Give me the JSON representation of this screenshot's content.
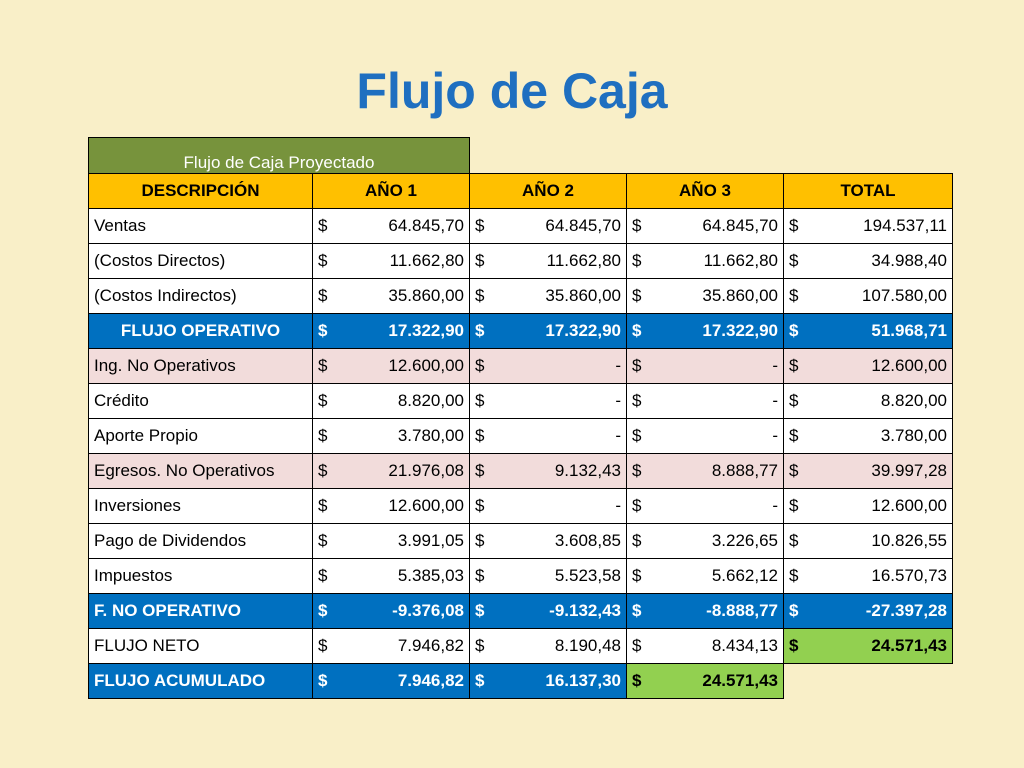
{
  "title": "Flujo de Caja",
  "table": {
    "caption": "Flujo de Caja Proyectado",
    "headers": [
      "DESCRIPCIÓN",
      "AÑO 1",
      "AÑO 2",
      "AÑO 3",
      "TOTAL"
    ],
    "rows": [
      {
        "label": "Ventas",
        "style": "white",
        "cells": [
          [
            "$",
            "64.845,70"
          ],
          [
            "$",
            "64.845,70"
          ],
          [
            "$",
            "64.845,70"
          ],
          [
            "$",
            "194.537,11"
          ]
        ]
      },
      {
        "label": "(Costos Directos)",
        "style": "white",
        "cells": [
          [
            "$",
            "11.662,80"
          ],
          [
            "$",
            "11.662,80"
          ],
          [
            "$",
            "11.662,80"
          ],
          [
            "$",
            "34.988,40"
          ]
        ]
      },
      {
        "label": "(Costos Indirectos)",
        "style": "white",
        "cells": [
          [
            "$",
            "35.860,00"
          ],
          [
            "$",
            "35.860,00"
          ],
          [
            "$",
            "35.860,00"
          ],
          [
            "$",
            "107.580,00"
          ]
        ]
      },
      {
        "label": "FLUJO OPERATIVO",
        "style": "blue",
        "cells": [
          [
            "$",
            "17.322,90"
          ],
          [
            "$",
            "17.322,90"
          ],
          [
            "$",
            "17.322,90"
          ],
          [
            "$",
            "51.968,71"
          ]
        ]
      },
      {
        "label": "Ing. No Operativos",
        "style": "pink",
        "cells": [
          [
            "$",
            "12.600,00"
          ],
          [
            "$",
            "-"
          ],
          [
            "$",
            "-"
          ],
          [
            "$",
            "12.600,00"
          ]
        ]
      },
      {
        "label": "Crédito",
        "style": "white",
        "cells": [
          [
            "$",
            "8.820,00"
          ],
          [
            "$",
            "-"
          ],
          [
            "$",
            "-"
          ],
          [
            "$",
            "8.820,00"
          ]
        ]
      },
      {
        "label": "Aporte Propio",
        "style": "white",
        "cells": [
          [
            "$",
            "3.780,00"
          ],
          [
            "$",
            "-"
          ],
          [
            "$",
            "-"
          ],
          [
            "$",
            "3.780,00"
          ]
        ]
      },
      {
        "label": "Egresos. No Operativos",
        "style": "pink",
        "cells": [
          [
            "$",
            "21.976,08"
          ],
          [
            "$",
            "9.132,43"
          ],
          [
            "$",
            "8.888,77"
          ],
          [
            "$",
            "39.997,28"
          ]
        ]
      },
      {
        "label": "Inversiones",
        "style": "white",
        "cells": [
          [
            "$",
            "12.600,00"
          ],
          [
            "$",
            "-"
          ],
          [
            "$",
            "-"
          ],
          [
            "$",
            "12.600,00"
          ]
        ]
      },
      {
        "label": "Pago de Dividendos",
        "style": "white",
        "cells": [
          [
            "$",
            "3.991,05"
          ],
          [
            "$",
            "3.608,85"
          ],
          [
            "$",
            "3.226,65"
          ],
          [
            "$",
            "10.826,55"
          ]
        ]
      },
      {
        "label": "Impuestos",
        "style": "white",
        "cells": [
          [
            "$",
            "5.385,03"
          ],
          [
            "$",
            "5.523,58"
          ],
          [
            "$",
            "5.662,12"
          ],
          [
            "$",
            "16.570,73"
          ]
        ]
      },
      {
        "label": "F. NO OPERATIVO",
        "style": "blue left",
        "cells": [
          [
            "$",
            "-9.376,08"
          ],
          [
            "$",
            "-9.132,43"
          ],
          [
            "$",
            "-8.888,77"
          ],
          [
            "$",
            "-27.397,28"
          ]
        ]
      },
      {
        "label": "FLUJO NETO",
        "style": "white",
        "cells": [
          [
            "$",
            "7.946,82"
          ],
          [
            "$",
            "8.190,48"
          ],
          [
            "$",
            "8.434,13"
          ],
          [
            "$",
            "24.571,43"
          ]
        ],
        "highlight": [
          3
        ]
      },
      {
        "label": "FLUJO ACUMULADO",
        "style": "blue left",
        "cells": [
          [
            "$",
            "7.946,82"
          ],
          [
            "$",
            "16.137,30"
          ],
          [
            "$",
            "24.571,43"
          ]
        ],
        "highlight": [
          2
        ]
      }
    ]
  },
  "colors": {
    "background": "#f9efc8",
    "title": "#1f6fc0",
    "caption_bg": "#77933c",
    "header_bg": "#ffc000",
    "blue_row": "#0070c0",
    "pink_row": "#f2dcdb",
    "highlight_green": "#92d050"
  }
}
